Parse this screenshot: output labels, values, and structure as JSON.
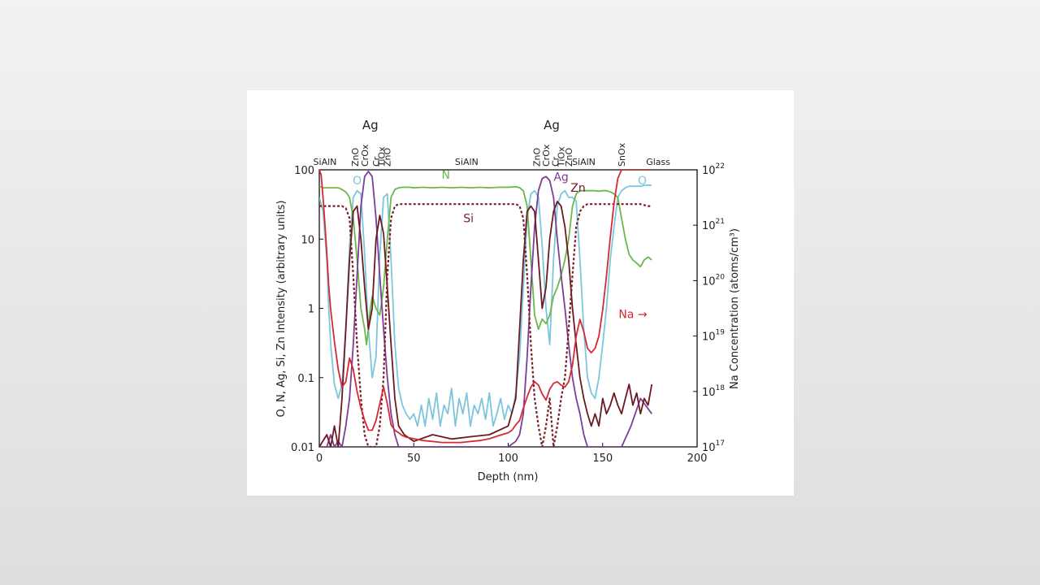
{
  "chart_data": {
    "type": "line",
    "title": "",
    "xlabel": "Depth (nm)",
    "ylabel_left": "O, N, Ag, Si, Zn Intensity (arbitrary units)",
    "ylabel_right": "Na Concentration (atoms/cm³)",
    "xlim": [
      0,
      200
    ],
    "ylim_left": [
      0.01,
      100
    ],
    "ylim_right": [
      1e+17,
      1e+22
    ],
    "yscale": "log",
    "grid": false,
    "x_ticks": [
      "0",
      "50",
      "100",
      "150",
      "200"
    ],
    "y_left_ticks": [
      "0.01",
      "0.1",
      "1",
      "10",
      "100"
    ],
    "y_right_ticks": [
      {
        "base": "10",
        "exp": "17"
      },
      {
        "base": "10",
        "exp": "18"
      },
      {
        "base": "10",
        "exp": "19"
      },
      {
        "base": "10",
        "exp": "20"
      },
      {
        "base": "10",
        "exp": "21"
      },
      {
        "base": "10",
        "exp": "22"
      }
    ],
    "layers": [
      {
        "label": "SiAlN",
        "x": 3
      },
      {
        "label": "ZnO",
        "x": 19,
        "vertical": true
      },
      {
        "label": "CrOx",
        "x": 24,
        "vertical": true
      },
      {
        "label": "Cr",
        "x": 30,
        "vertical": true
      },
      {
        "label": "TiOx",
        "x": 33,
        "vertical": true
      },
      {
        "label": "ZnO",
        "x": 36,
        "vertical": true
      },
      {
        "label": "SiAlN",
        "x": 78
      },
      {
        "label": "ZnO",
        "x": 115,
        "vertical": true
      },
      {
        "label": "CrOx",
        "x": 120,
        "vertical": true
      },
      {
        "label": "Cr",
        "x": 125,
        "vertical": true
      },
      {
        "label": "TiOx",
        "x": 128,
        "vertical": true
      },
      {
        "label": "ZnO",
        "x": 132,
        "vertical": true
      },
      {
        "label": "SiAlN",
        "x": 140
      },
      {
        "label": "SnOx",
        "x": 160,
        "vertical": true
      },
      {
        "label": "Glass",
        "x": 173
      }
    ],
    "ag_labels": [
      {
        "label": "Ag",
        "x": 27
      },
      {
        "label": "Ag",
        "x": 123
      }
    ],
    "series": [
      {
        "name": "O",
        "color": "#7cc6dc",
        "axis": "left",
        "label_at": [
          {
            "x": 20,
            "y": 70
          },
          {
            "x": 171,
            "y": 70
          }
        ],
        "x": [
          0,
          2,
          4,
          5,
          6,
          8,
          10,
          12,
          14,
          16,
          18,
          20,
          22,
          24,
          26,
          28,
          30,
          32,
          34,
          36,
          38,
          40,
          42,
          44,
          46,
          48,
          50,
          52,
          54,
          56,
          58,
          60,
          62,
          64,
          66,
          68,
          70,
          72,
          74,
          76,
          78,
          80,
          82,
          84,
          86,
          88,
          90,
          92,
          94,
          96,
          98,
          100,
          102,
          104,
          106,
          108,
          110,
          112,
          114,
          116,
          118,
          120,
          122,
          124,
          126,
          128,
          130,
          132,
          134,
          136,
          138,
          140,
          142,
          144,
          146,
          148,
          150,
          152,
          154,
          156,
          158,
          160,
          162,
          164,
          166,
          168,
          170,
          172,
          174,
          176
        ],
        "y": [
          40,
          25,
          5,
          1,
          0.3,
          0.08,
          0.05,
          0.08,
          0.5,
          8,
          40,
          50,
          45,
          6,
          0.5,
          0.1,
          0.2,
          6,
          40,
          45,
          5,
          0.3,
          0.07,
          0.04,
          0.03,
          0.025,
          0.03,
          0.02,
          0.04,
          0.02,
          0.05,
          0.025,
          0.06,
          0.02,
          0.04,
          0.03,
          0.07,
          0.02,
          0.05,
          0.03,
          0.06,
          0.02,
          0.04,
          0.03,
          0.05,
          0.025,
          0.06,
          0.02,
          0.03,
          0.05,
          0.025,
          0.04,
          0.03,
          0.06,
          0.2,
          2,
          20,
          45,
          50,
          40,
          8,
          1,
          0.3,
          5,
          30,
          45,
          50,
          40,
          40,
          35,
          5,
          0.5,
          0.1,
          0.06,
          0.05,
          0.1,
          0.3,
          1,
          5,
          15,
          40,
          50,
          55,
          58,
          58,
          58,
          58,
          60,
          60,
          60
        ]
      },
      {
        "name": "N",
        "color": "#6ab84a",
        "axis": "left",
        "label_at": [
          {
            "x": 67,
            "y": 85
          }
        ],
        "x": [
          0,
          2,
          4,
          6,
          8,
          10,
          12,
          14,
          16,
          18,
          20,
          22,
          24,
          25,
          26,
          27,
          28,
          30,
          32,
          34,
          36,
          38,
          40,
          42,
          44,
          46,
          48,
          50,
          55,
          60,
          65,
          70,
          75,
          80,
          85,
          90,
          95,
          100,
          104,
          106,
          108,
          110,
          112,
          114,
          116,
          118,
          120,
          122,
          124,
          126,
          128,
          130,
          132,
          134,
          136,
          138,
          140,
          142,
          144,
          146,
          148,
          150,
          152,
          154,
          156,
          158,
          160,
          162,
          164,
          166,
          168,
          170,
          172,
          174,
          176
        ],
        "y": [
          58,
          55,
          55,
          55,
          55,
          55,
          52,
          48,
          40,
          20,
          5,
          1,
          0.5,
          0.3,
          0.5,
          1,
          1.5,
          1,
          0.8,
          2,
          10,
          40,
          52,
          55,
          56,
          56,
          56,
          55,
          56,
          55,
          56,
          55,
          56,
          55,
          56,
          55,
          56,
          56,
          57,
          55,
          50,
          30,
          5,
          0.8,
          0.5,
          0.7,
          0.6,
          0.8,
          1.5,
          2,
          3,
          5,
          10,
          30,
          45,
          50,
          50,
          50,
          50,
          50,
          49,
          50,
          50,
          48,
          45,
          40,
          20,
          10,
          6,
          5,
          4.5,
          4,
          5,
          5.5,
          5
        ]
      },
      {
        "name": "Ag",
        "color": "#7d3c98",
        "axis": "left",
        "label_at": [
          {
            "x": 128,
            "y": 80
          }
        ],
        "x": [
          0,
          4,
          6,
          8,
          10,
          12,
          14,
          16,
          18,
          20,
          22,
          24,
          26,
          28,
          30,
          32,
          34,
          36,
          38,
          40,
          42,
          45,
          50,
          55,
          60,
          65,
          70,
          75,
          80,
          85,
          90,
          95,
          100,
          104,
          106,
          108,
          110,
          112,
          114,
          116,
          118,
          120,
          122,
          124,
          126,
          128,
          130,
          132,
          134,
          136,
          138,
          140,
          142,
          144,
          146,
          148,
          150,
          155,
          160,
          165,
          170,
          176
        ],
        "y": [
          0.01,
          0.01,
          0.015,
          0.01,
          0.012,
          0.01,
          0.02,
          0.05,
          0.3,
          3,
          30,
          80,
          95,
          80,
          20,
          3,
          0.5,
          0.1,
          0.03,
          0.015,
          0.01,
          0.01,
          0.01,
          0.01,
          0.01,
          0.01,
          0.01,
          0.01,
          0.01,
          0.01,
          0.01,
          0.01,
          0.01,
          0.012,
          0.015,
          0.03,
          0.2,
          2,
          15,
          50,
          75,
          80,
          70,
          40,
          10,
          3,
          1,
          0.3,
          0.1,
          0.05,
          0.03,
          0.015,
          0.01,
          0.01,
          0.01,
          0.01,
          0.01,
          0.01,
          0.01,
          0.02,
          0.05,
          0.03
        ]
      },
      {
        "name": "Zn",
        "color": "#6b1a22",
        "axis": "left",
        "label_at": [
          {
            "x": 137,
            "y": 55
          }
        ],
        "x": [
          0,
          4,
          6,
          8,
          10,
          12,
          14,
          16,
          18,
          20,
          22,
          24,
          26,
          28,
          30,
          32,
          34,
          36,
          38,
          40,
          42,
          45,
          50,
          60,
          70,
          80,
          90,
          100,
          104,
          106,
          108,
          110,
          112,
          114,
          116,
          118,
          120,
          122,
          124,
          126,
          128,
          130,
          132,
          134,
          136,
          138,
          140,
          142,
          144,
          146,
          148,
          150,
          152,
          154,
          156,
          158,
          160,
          162,
          164,
          166,
          168,
          170,
          172,
          174,
          176
        ],
        "y": [
          0.01,
          0.015,
          0.01,
          0.02,
          0.01,
          0.05,
          0.5,
          5,
          25,
          30,
          10,
          2,
          0.5,
          1,
          10,
          22,
          12,
          2,
          0.3,
          0.05,
          0.02,
          0.015,
          0.012,
          0.015,
          0.013,
          0.014,
          0.015,
          0.02,
          0.05,
          0.5,
          5,
          25,
          30,
          25,
          5,
          1,
          2,
          10,
          25,
          35,
          30,
          15,
          5,
          1,
          0.3,
          0.1,
          0.05,
          0.03,
          0.02,
          0.03,
          0.02,
          0.05,
          0.03,
          0.04,
          0.06,
          0.04,
          0.03,
          0.05,
          0.08,
          0.04,
          0.06,
          0.03,
          0.05,
          0.04,
          0.08
        ]
      },
      {
        "name": "Si",
        "color": "#7a1f26",
        "axis": "left",
        "dashed": true,
        "label_at": [
          {
            "x": 79,
            "y": 20
          }
        ],
        "x": [
          0,
          4,
          8,
          10,
          12,
          14,
          16,
          18,
          20,
          22,
          24,
          26,
          28,
          30,
          32,
          34,
          36,
          38,
          40,
          42,
          44,
          48,
          55,
          65,
          75,
          85,
          95,
          100,
          104,
          106,
          108,
          110,
          112,
          114,
          116,
          118,
          120,
          122,
          124,
          126,
          128,
          130,
          132,
          134,
          136,
          138,
          140,
          142,
          146,
          150,
          154,
          158,
          162,
          166,
          170,
          174,
          176
        ],
        "y": [
          30,
          30,
          30,
          30,
          30,
          28,
          20,
          3,
          0.3,
          0.05,
          0.015,
          0.01,
          0.01,
          0.01,
          0.02,
          0.1,
          3,
          20,
          30,
          32,
          32,
          32,
          32,
          32,
          32,
          32,
          32,
          32,
          32,
          30,
          20,
          3,
          0.3,
          0.05,
          0.02,
          0.01,
          0.02,
          0.05,
          0.01,
          0.02,
          0.05,
          0.1,
          0.5,
          3,
          15,
          25,
          30,
          32,
          32,
          32,
          32,
          32,
          32,
          32,
          32,
          30,
          30
        ]
      },
      {
        "name": "Na",
        "color": "#d42a33",
        "axis": "right",
        "label_at": [
          {
            "x": 166,
            "y": 2.5e+19
          }
        ],
        "label_text": "Na →",
        "x": [
          0,
          1,
          2,
          3,
          4,
          5,
          6,
          8,
          10,
          12,
          14,
          16,
          18,
          20,
          22,
          24,
          26,
          28,
          30,
          32,
          34,
          36,
          38,
          40,
          42,
          44,
          46,
          50,
          55,
          60,
          65,
          70,
          75,
          80,
          85,
          90,
          95,
          100,
          102,
          104,
          106,
          108,
          110,
          112,
          114,
          116,
          118,
          120,
          122,
          124,
          126,
          128,
          130,
          132,
          134,
          136,
          138,
          140,
          142,
          144,
          146,
          148,
          150,
          152,
          154,
          156,
          158,
          160,
          165,
          170,
          176
        ],
        "y": [
          1e+22,
          8e+21,
          3e+21,
          1e+21,
          3e+20,
          8e+19,
          3e+19,
          8e+18,
          2.5e+18,
          1.2e+18,
          1.5e+18,
          4e+18,
          2.5e+18,
          1e+18,
          5e+17,
          3e+17,
          2e+17,
          2e+17,
          3e+17,
          6e+17,
          1.2e+18,
          6e+17,
          2.5e+17,
          2e+17,
          1.8e+17,
          1.6e+17,
          1.5e+17,
          1.4e+17,
          1.3e+17,
          1.25e+17,
          1.2e+17,
          1.2e+17,
          1.2e+17,
          1.25e+17,
          1.3e+17,
          1.4e+17,
          1.6e+17,
          1.8e+17,
          2e+17,
          2.5e+17,
          3e+17,
          5e+17,
          8e+17,
          1.2e+18,
          1.5e+18,
          1.3e+18,
          9e+17,
          7e+17,
          1.1e+18,
          1.4e+18,
          1.5e+18,
          1.3e+18,
          1.2e+18,
          1.5e+18,
          3e+18,
          1e+19,
          2e+19,
          1.2e+19,
          6e+18,
          5e+18,
          6e+18,
          1e+19,
          3e+19,
          1.2e+20,
          6e+20,
          2.5e+21,
          7e+21,
          1e+22,
          1e+22,
          1e+22,
          1e+22
        ]
      }
    ]
  }
}
